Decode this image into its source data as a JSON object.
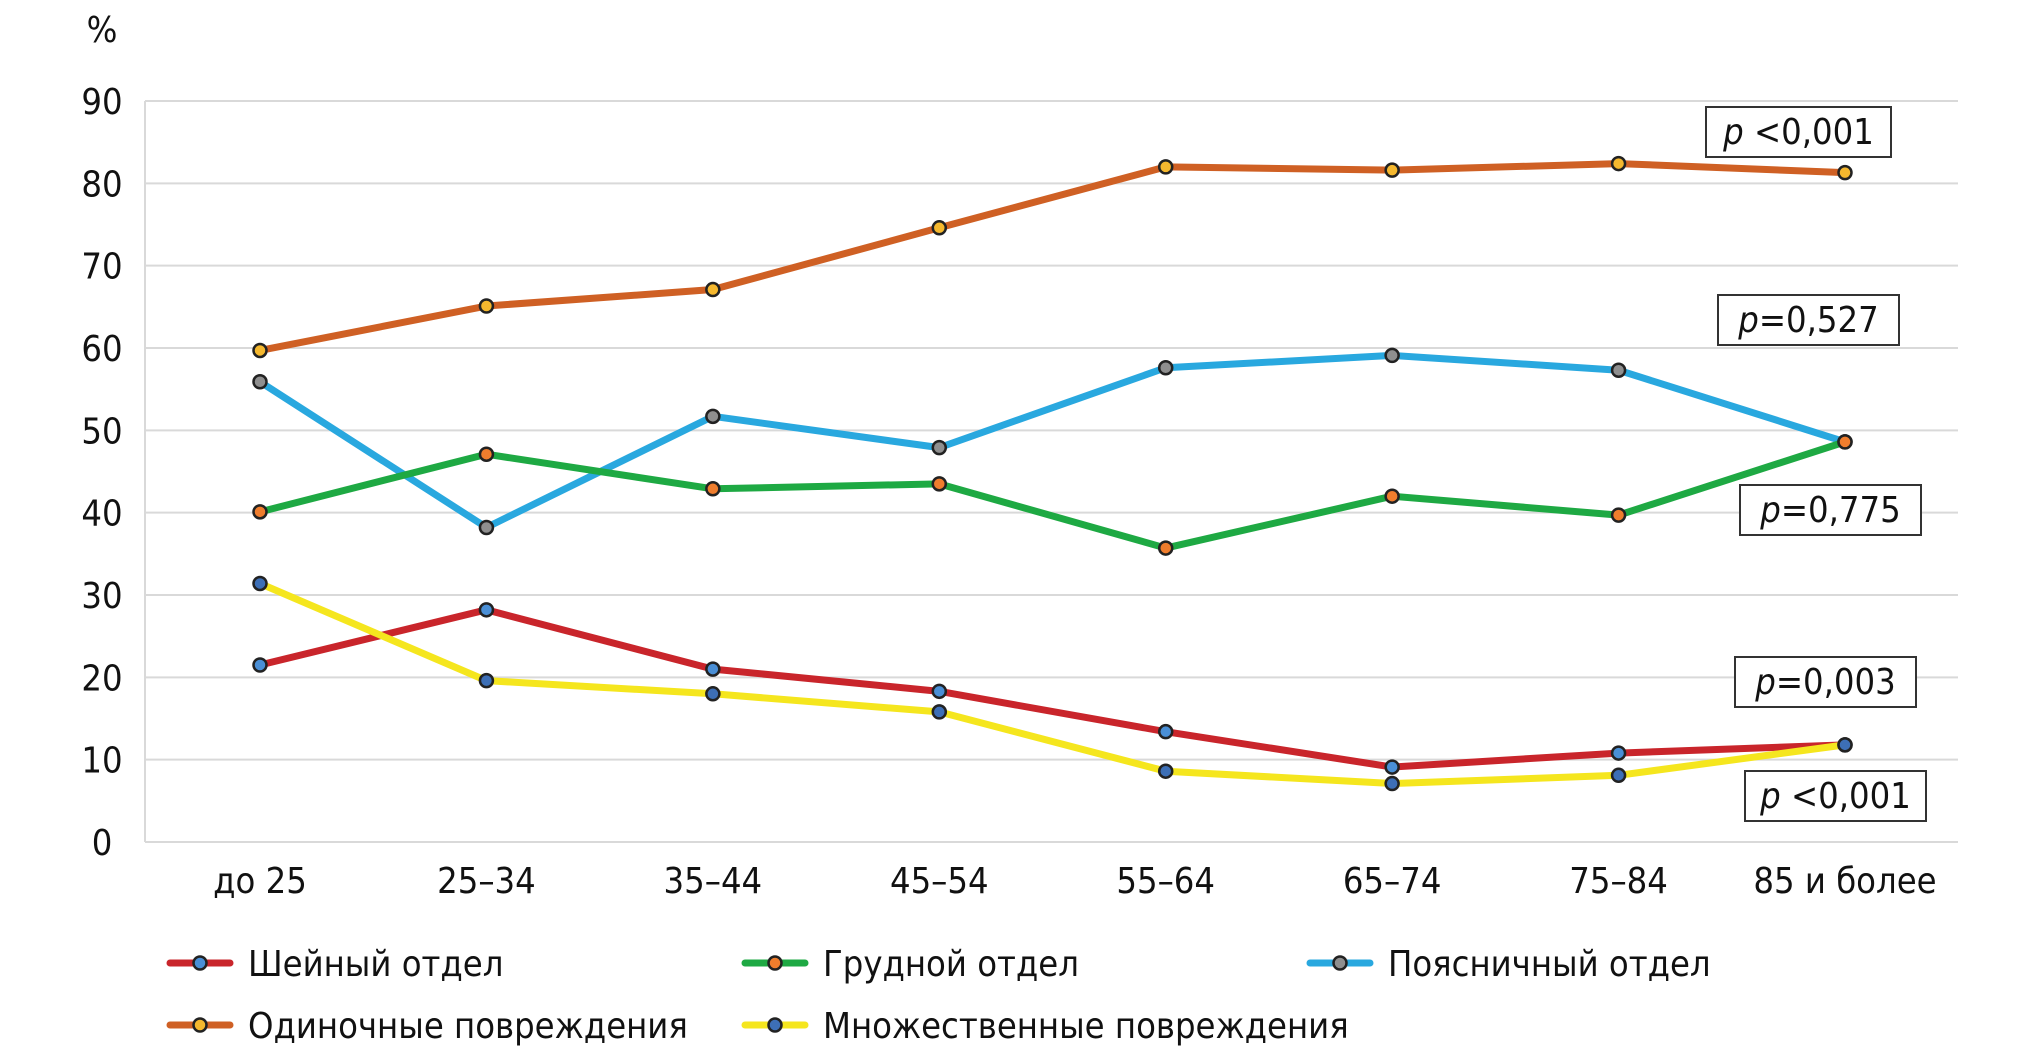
{
  "chart_data": {
    "type": "line",
    "unit_label": "%",
    "categories": [
      "до 25",
      "25–34",
      "35–44",
      "45–54",
      "55–64",
      "65–74",
      "75–84",
      "85 и более"
    ],
    "ylim": [
      0,
      90
    ],
    "yticks": [
      0,
      10,
      20,
      30,
      40,
      50,
      60,
      70,
      80,
      90
    ],
    "grid": true,
    "legend_position": "bottom",
    "series": [
      {
        "name": "Шейный отдел",
        "color": "#c9252b",
        "marker": "#4a8fd6",
        "values": [
          21.5,
          28.2,
          21.0,
          18.3,
          13.4,
          9.1,
          10.8,
          11.8
        ]
      },
      {
        "name": "Грудной отдел",
        "color": "#1ea943",
        "marker": "#ef7d2d",
        "values": [
          40.1,
          47.1,
          42.9,
          43.5,
          35.7,
          42.0,
          39.7,
          48.6
        ]
      },
      {
        "name": "Поясничный отдел",
        "color": "#29a8df",
        "marker": "#8f8f8f",
        "values": [
          55.9,
          38.2,
          51.7,
          47.9,
          57.6,
          59.1,
          57.3,
          48.6
        ]
      },
      {
        "name": "Одиночные повреждения",
        "color": "#cf6024",
        "marker": "#f5b82e",
        "values": [
          59.7,
          65.1,
          67.1,
          74.6,
          82.0,
          81.6,
          82.4,
          81.3
        ]
      },
      {
        "name": "Множественные повреждения",
        "color": "#f5e61e",
        "marker": "#3d6fb6",
        "values": [
          31.4,
          19.6,
          18.0,
          15.8,
          8.6,
          7.1,
          8.1,
          11.8
        ]
      }
    ],
    "annotations": [
      {
        "text": "p <0,001",
        "series": "Одиночные повреждения"
      },
      {
        "text": "p=0,527",
        "series": "Поясничный отдел"
      },
      {
        "text": "p=0,775",
        "series": "Грудной отдел"
      },
      {
        "text": "p=0,003",
        "series": "Шейный отдел"
      },
      {
        "text": "p <0,001",
        "series": "Множественные повреждения"
      }
    ]
  }
}
